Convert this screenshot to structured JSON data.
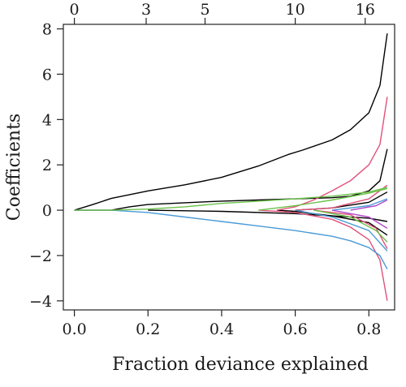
{
  "chart_data": {
    "type": "line",
    "xlabel": "Fraction deviance explained",
    "ylabel": "Coefficients",
    "xlim": [
      -0.03,
      0.87
    ],
    "ylim": [
      -4.4,
      8.2
    ],
    "x_ticks": [
      0.0,
      0.2,
      0.4,
      0.6,
      0.8
    ],
    "x_tick_labels": [
      "0.0",
      "0.2",
      "0.4",
      "0.6",
      "0.8"
    ],
    "y_ticks": [
      -4,
      -2,
      0,
      2,
      4,
      6,
      8
    ],
    "y_tick_labels": [
      "−4",
      "−2",
      "0",
      "2",
      "4",
      "6",
      "8"
    ],
    "top_axis": {
      "positions": [
        0.0,
        0.195,
        0.355,
        0.6,
        0.79
      ],
      "labels": [
        "0",
        "3",
        "5",
        "10",
        "16"
      ]
    },
    "grid": false,
    "legend": "none",
    "series": [
      {
        "color": "#000000",
        "x": [
          0,
          0.05,
          0.1,
          0.2,
          0.3,
          0.4,
          0.5,
          0.58,
          0.62,
          0.7,
          0.75,
          0.8,
          0.83,
          0.85
        ],
        "y": [
          0,
          0.25,
          0.52,
          0.85,
          1.12,
          1.45,
          1.95,
          2.45,
          2.65,
          3.1,
          3.55,
          4.3,
          5.5,
          7.8
        ]
      },
      {
        "color": "#000000",
        "x": [
          0,
          0.1,
          0.15,
          0.2,
          0.3,
          0.4,
          0.5,
          0.6,
          0.7,
          0.75,
          0.8,
          0.83,
          0.85
        ],
        "y": [
          0,
          0,
          0.15,
          0.25,
          0.33,
          0.4,
          0.45,
          0.5,
          0.55,
          0.62,
          0.85,
          1.3,
          2.7
        ]
      },
      {
        "color": "#000000",
        "x": [
          0.55,
          0.6,
          0.7,
          0.8,
          0.85
        ],
        "y": [
          0,
          -0.05,
          -0.25,
          -0.55,
          -1.1
        ]
      },
      {
        "color": "#000000",
        "x": [
          0.6,
          0.7,
          0.8,
          0.85
        ],
        "y": [
          0,
          0.1,
          0.35,
          0.8
        ]
      },
      {
        "color": "#000000",
        "x": [
          0.2,
          0.4,
          0.6,
          0.7,
          0.8,
          0.85
        ],
        "y": [
          0,
          -0.05,
          -0.15,
          -0.25,
          -0.35,
          -0.5
        ]
      },
      {
        "color": "#E0527A",
        "x": [
          0.55,
          0.6,
          0.65,
          0.7,
          0.75,
          0.8,
          0.83,
          0.85
        ],
        "y": [
          0,
          0.15,
          0.45,
          0.85,
          1.3,
          2.0,
          2.9,
          5.0
        ]
      },
      {
        "color": "#E0527A",
        "x": [
          0.5,
          0.6,
          0.7,
          0.75,
          0.8,
          0.83,
          0.85
        ],
        "y": [
          0,
          -0.1,
          -0.4,
          -0.75,
          -1.3,
          -2.2,
          -4.0
        ]
      },
      {
        "color": "#E0527A",
        "x": [
          0.6,
          0.7,
          0.8,
          0.85
        ],
        "y": [
          0,
          0.1,
          0.5,
          1.1
        ]
      },
      {
        "color": "#E0527A",
        "x": [
          0.65,
          0.75,
          0.82,
          0.85
        ],
        "y": [
          0,
          -0.2,
          -0.8,
          -1.7
        ]
      },
      {
        "color": "#4A9AD6",
        "x": [
          0,
          0.1,
          0.2,
          0.3,
          0.4,
          0.5,
          0.6,
          0.7,
          0.75,
          0.8,
          0.83,
          0.85
        ],
        "y": [
          0,
          0,
          -0.1,
          -0.3,
          -0.5,
          -0.7,
          -0.9,
          -1.15,
          -1.35,
          -1.65,
          -2.0,
          -2.6
        ]
      },
      {
        "color": "#4A9AD6",
        "x": [
          0.6,
          0.7,
          0.8,
          0.85
        ],
        "y": [
          0,
          -0.3,
          -0.9,
          -1.8
        ]
      },
      {
        "color": "#4A9AD6",
        "x": [
          0.7,
          0.8,
          0.85
        ],
        "y": [
          0,
          0.2,
          0.5
        ]
      },
      {
        "color": "#6CC24A",
        "x": [
          0,
          0.1,
          0.2,
          0.3,
          0.4,
          0.5,
          0.6,
          0.7,
          0.8,
          0.85
        ],
        "y": [
          0,
          0,
          0.05,
          0.15,
          0.3,
          0.4,
          0.5,
          0.62,
          0.8,
          1.0
        ]
      },
      {
        "color": "#6CC24A",
        "x": [
          0.5,
          0.6,
          0.7,
          0.8,
          0.85
        ],
        "y": [
          0,
          0.2,
          0.45,
          0.75,
          0.95
        ]
      },
      {
        "color": "#6CC24A",
        "x": [
          0.65,
          0.75,
          0.82,
          0.85
        ],
        "y": [
          0,
          -0.3,
          -0.9,
          -1.4
        ]
      },
      {
        "color": "#B04AC8",
        "x": [
          0.7,
          0.8,
          0.85
        ],
        "y": [
          0,
          -0.3,
          -0.8
        ]
      },
      {
        "color": "#B04AC8",
        "x": [
          0.75,
          0.82,
          0.85
        ],
        "y": [
          0,
          0.2,
          0.45
        ]
      }
    ]
  }
}
